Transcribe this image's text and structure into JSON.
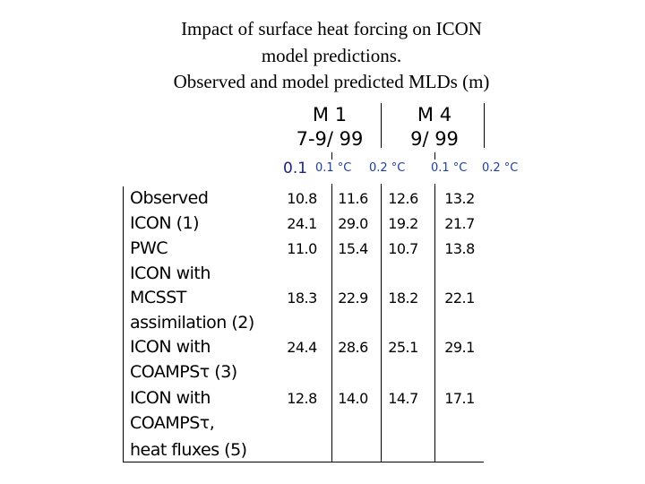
{
  "title": [
    "Impact of surface heat forcing on ICON",
    "model predictions.",
    "Observed and model predicted MLDs (m)"
  ],
  "table": {
    "groups": [
      {
        "name": "M 1",
        "period": "7-9/ 99"
      },
      {
        "name": "M 4",
        "period": "9/ 99"
      }
    ],
    "subheaders": [
      "0.1",
      "0.1 °C",
      "0.2 °C",
      "0.1 °C",
      "0.2 °C"
    ],
    "rows": [
      {
        "label": [
          "Observed"
        ],
        "values": [
          "10.8",
          "11.6",
          "12.6",
          "13.2"
        ]
      },
      {
        "label": [
          "ICON (1)"
        ],
        "values": [
          "24.1",
          "29.0",
          "19.2",
          "21.7"
        ]
      },
      {
        "label": [
          "PWC"
        ],
        "values": [
          "11.0",
          "15.4",
          "10.7",
          "13.8"
        ]
      },
      {
        "label": [
          "ICON with",
          "MCSST",
          "assimilation (2)"
        ],
        "values": [
          "18.3",
          "22.9",
          "18.2",
          "22.1"
        ]
      },
      {
        "label": [
          "ICON with",
          "COAMPSτ (3)"
        ],
        "values": [
          "24.4",
          "28.6",
          "25.1",
          "29.1"
        ]
      },
      {
        "label": [
          "ICON with",
          "COAMPSτ,",
          "heat fluxes (5)"
        ],
        "values": [
          "12.8",
          "14.0",
          "14.7",
          "17.1"
        ]
      }
    ]
  }
}
